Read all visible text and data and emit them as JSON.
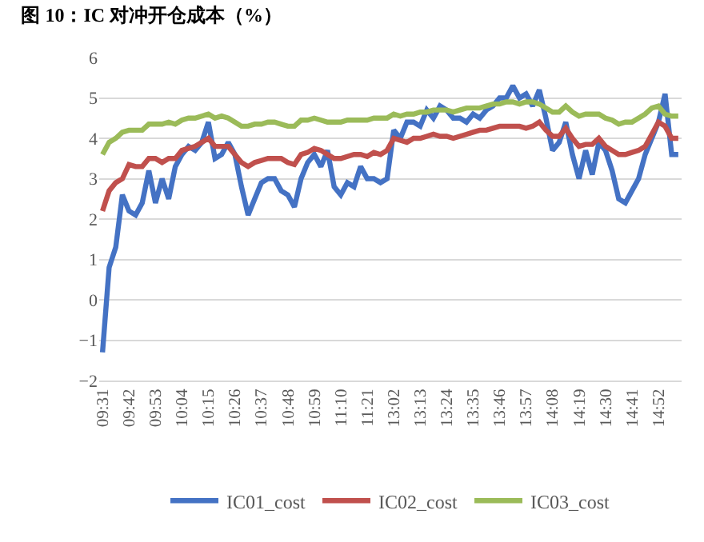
{
  "chart_data": {
    "type": "line",
    "title": "图 10：IC 对冲开仓成本（%）",
    "categories": [
      "09:31",
      null,
      null,
      null,
      "09:42",
      null,
      null,
      null,
      "09:53",
      null,
      null,
      null,
      "10:04",
      null,
      null,
      null,
      "10:15",
      null,
      null,
      null,
      "10:26",
      null,
      null,
      null,
      "10:37",
      null,
      null,
      null,
      "10:48",
      null,
      null,
      null,
      "10:59",
      null,
      null,
      null,
      "11:10",
      null,
      null,
      null,
      "11:21",
      null,
      null,
      null,
      "13:02",
      null,
      null,
      null,
      "13:13",
      null,
      null,
      null,
      "13:24",
      null,
      null,
      null,
      "13:35",
      null,
      null,
      null,
      "13:46",
      null,
      null,
      null,
      "13:57",
      null,
      null,
      null,
      "14:08",
      null,
      null,
      null,
      "14:19",
      null,
      null,
      null,
      "14:30",
      null,
      null,
      null,
      "14:41",
      null,
      null,
      null,
      "14:52",
      null,
      null,
      null
    ],
    "series": [
      {
        "name": "IC01_cost",
        "color": "#4472c4",
        "values": [
          -1.3,
          0.8,
          1.3,
          2.6,
          2.2,
          2.1,
          2.4,
          3.2,
          2.4,
          3.0,
          2.5,
          3.3,
          3.6,
          3.8,
          3.7,
          3.9,
          4.4,
          3.5,
          3.6,
          3.9,
          3.6,
          2.8,
          2.1,
          2.5,
          2.9,
          3.0,
          3.0,
          2.7,
          2.6,
          2.3,
          3.0,
          3.4,
          3.6,
          3.3,
          3.7,
          2.8,
          2.6,
          2.9,
          2.8,
          3.3,
          3.0,
          3.0,
          2.9,
          3.0,
          4.2,
          4.0,
          4.4,
          4.4,
          4.3,
          4.7,
          4.5,
          4.8,
          4.7,
          4.5,
          4.5,
          4.4,
          4.6,
          4.5,
          4.7,
          4.8,
          5.0,
          5.0,
          5.3,
          5.0,
          5.1,
          4.8,
          5.2,
          4.5,
          3.7,
          3.9,
          4.4,
          3.6,
          3.0,
          3.7,
          3.1,
          3.9,
          3.7,
          3.2,
          2.5,
          2.4,
          2.7,
          3.0,
          3.6,
          4.0,
          4.4,
          5.1,
          3.6,
          3.6
        ]
      },
      {
        "name": "IC02_cost",
        "color": "#c0504d",
        "values": [
          2.2,
          2.7,
          2.9,
          3.0,
          3.35,
          3.3,
          3.3,
          3.5,
          3.5,
          3.4,
          3.5,
          3.5,
          3.7,
          3.75,
          3.8,
          3.9,
          4.0,
          3.8,
          3.8,
          3.8,
          3.6,
          3.4,
          3.3,
          3.4,
          3.45,
          3.5,
          3.5,
          3.5,
          3.4,
          3.35,
          3.6,
          3.65,
          3.75,
          3.7,
          3.6,
          3.5,
          3.5,
          3.55,
          3.6,
          3.6,
          3.55,
          3.65,
          3.6,
          3.7,
          4.0,
          3.95,
          3.9,
          4.0,
          4.0,
          4.05,
          4.1,
          4.05,
          4.05,
          4.0,
          4.05,
          4.1,
          4.15,
          4.2,
          4.2,
          4.25,
          4.3,
          4.3,
          4.3,
          4.3,
          4.25,
          4.3,
          4.4,
          4.2,
          4.05,
          4.05,
          4.25,
          4.0,
          3.8,
          3.85,
          3.85,
          4.0,
          3.8,
          3.7,
          3.6,
          3.6,
          3.65,
          3.7,
          3.8,
          4.1,
          4.4,
          4.3,
          4.0,
          4.0
        ]
      },
      {
        "name": "IC03_cost",
        "color": "#9bbb59",
        "values": [
          3.6,
          3.9,
          4.0,
          4.15,
          4.2,
          4.2,
          4.2,
          4.35,
          4.35,
          4.35,
          4.4,
          4.35,
          4.45,
          4.5,
          4.5,
          4.55,
          4.6,
          4.5,
          4.55,
          4.5,
          4.4,
          4.3,
          4.3,
          4.35,
          4.35,
          4.4,
          4.4,
          4.35,
          4.3,
          4.3,
          4.45,
          4.45,
          4.5,
          4.45,
          4.4,
          4.4,
          4.4,
          4.45,
          4.45,
          4.45,
          4.45,
          4.5,
          4.5,
          4.5,
          4.6,
          4.55,
          4.6,
          4.6,
          4.65,
          4.65,
          4.7,
          4.7,
          4.7,
          4.65,
          4.7,
          4.75,
          4.75,
          4.75,
          4.8,
          4.85,
          4.85,
          4.9,
          4.9,
          4.85,
          4.9,
          4.9,
          4.85,
          4.75,
          4.65,
          4.65,
          4.8,
          4.65,
          4.55,
          4.6,
          4.6,
          4.6,
          4.5,
          4.45,
          4.35,
          4.4,
          4.4,
          4.5,
          4.6,
          4.75,
          4.8,
          4.6,
          4.55,
          4.55
        ]
      }
    ],
    "ylim": [
      -2,
      6
    ],
    "yticks": [
      {
        "value": -2,
        "label": "−2"
      },
      {
        "value": -1,
        "label": "−1"
      },
      0,
      1,
      2,
      3,
      4,
      5,
      6
    ],
    "grid": "y",
    "legend": "bottom",
    "line_style": "solid",
    "marker": "none"
  }
}
